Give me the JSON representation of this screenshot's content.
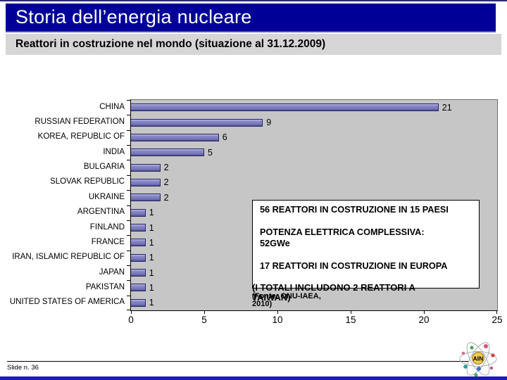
{
  "slide": {
    "title": "Storia dell’energia nucleare",
    "subtitle": "Reattori in costruzione nel mondo (situazione al 31.12.2009)",
    "slide_label": "Slide n. 36",
    "logo_text": "AIN"
  },
  "colors": {
    "title_bar": "#000099",
    "subtitle_bar": "#d6d6d6",
    "bar_fill": "#7e7ec0",
    "plot_background": "#c6c6c6",
    "bottom_bar": "#1d1db5"
  },
  "chart_data": {
    "type": "bar",
    "orientation": "horizontal",
    "title": "",
    "xlabel": "",
    "ylabel": "",
    "categories": [
      "CHINA",
      "RUSSIAN FEDERATION",
      "KOREA, REPUBLIC OF",
      "INDIA",
      "BULGARIA",
      "SLOVAK REPUBLIC",
      "UKRAINE",
      "ARGENTINA",
      "FINLAND",
      "FRANCE",
      "IRAN, ISLAMIC REPUBLIC OF",
      "JAPAN",
      "PAKISTAN",
      "UNITED STATES OF AMERICA"
    ],
    "values": [
      21,
      9,
      6,
      5,
      2,
      2,
      2,
      1,
      1,
      1,
      1,
      1,
      1,
      1
    ],
    "xlim": [
      0,
      25
    ],
    "x_ticks": [
      0,
      5,
      10,
      15,
      20,
      25
    ],
    "grid": false,
    "legend": false,
    "bar_color": "#7e7ec0",
    "plot_bg": "#c6c6c6"
  },
  "annotation_box": {
    "lines": [
      "56 REATTORI IN COSTRUZIONE IN 15 PAESI",
      "",
      "POTENZA ELETTRICA COMPLESSIVA:",
      "52GWe",
      "",
      "17 REATTORI IN COSTRUZIONE IN EUROPA"
    ]
  },
  "notes": {
    "totals_note": "(I TOTALI INCLUDONO 2 REATTORI A TAIWAN)",
    "source_note": "(Fonte: ONU-IAEA, 2010)"
  }
}
